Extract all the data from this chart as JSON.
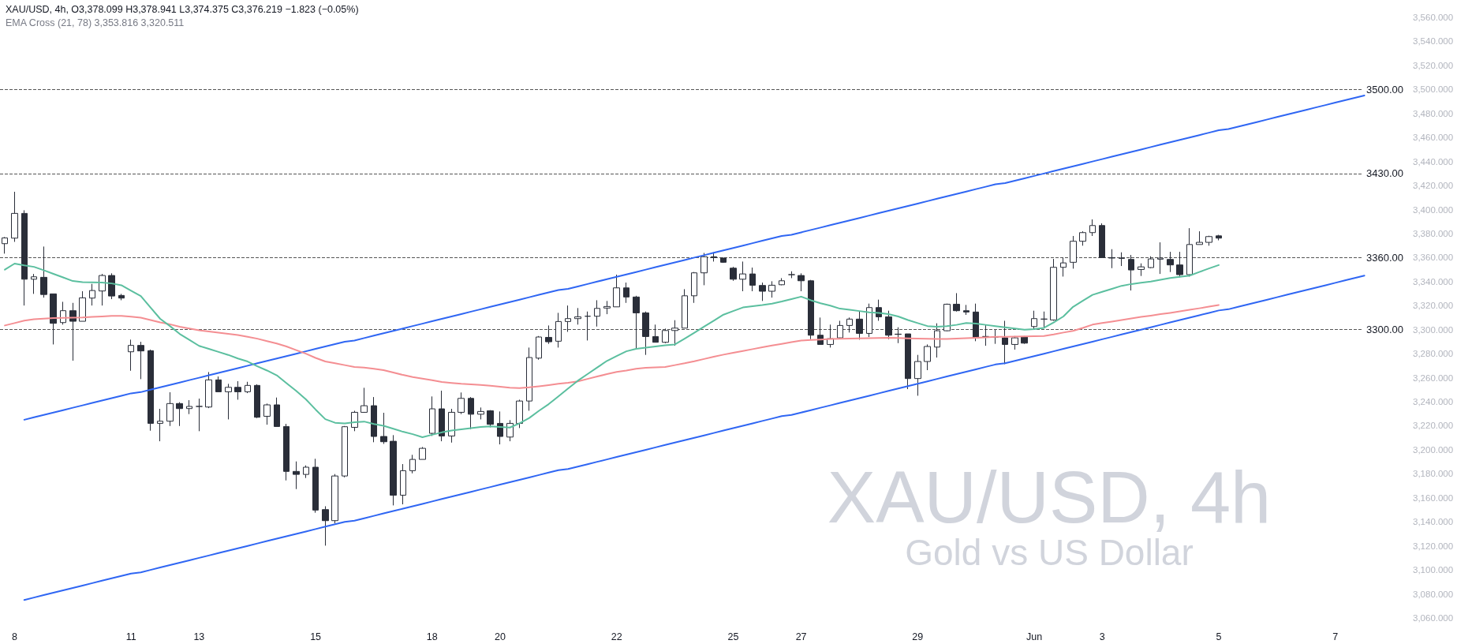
{
  "chart_data": {
    "type": "candlestick",
    "title": "XAU/USD, 4h, O3,378.099 H3,378.941 L3,374.375 C3,376.219 −1.823 (−0.05%)",
    "subtitle": "EMA Cross (21, 78) 3,353.816 3,320.511",
    "annotations": [
      "XAU/USD, 4h",
      "Gold vs US Dollar"
    ],
    "categories": [
      null,
      "8",
      null,
      null,
      null,
      null,
      null,
      null,
      null,
      null,
      null,
      null,
      null,
      "11",
      null,
      null,
      null,
      null,
      null,
      null,
      "13",
      null,
      null,
      null,
      null,
      null,
      null,
      null,
      null,
      null,
      null,
      null,
      "15",
      null,
      null,
      null,
      null,
      null,
      null,
      null,
      null,
      null,
      null,
      null,
      "18",
      null,
      null,
      null,
      null,
      null,
      null,
      "20",
      null,
      null,
      null,
      null,
      null,
      null,
      null,
      null,
      null,
      null,
      null,
      "22",
      null,
      null,
      null,
      null,
      null,
      null,
      null,
      null,
      null,
      null,
      null,
      "25",
      null,
      null,
      null,
      null,
      null,
      null,
      "27",
      null,
      null,
      null,
      null,
      null,
      null,
      null,
      null,
      null,
      null,
      null,
      "29",
      null,
      null,
      null,
      null,
      null,
      null,
      null,
      null,
      null,
      null,
      null,
      "Jun",
      null,
      null,
      null,
      null,
      null,
      null,
      "3",
      null,
      null,
      null,
      null,
      null,
      null,
      null,
      null,
      null,
      null,
      null,
      "5",
      null,
      null,
      null,
      null,
      null,
      null,
      null,
      null,
      null,
      null,
      null,
      "7",
      null,
      null,
      null,
      null,
      null,
      null,
      null
    ],
    "ylim": [
      3060,
      3560
    ],
    "yticks": [
      {
        "value": 3060,
        "label": "3,060.000"
      },
      {
        "value": 3080,
        "label": "3,080.000"
      },
      {
        "value": 3100,
        "label": "3,100.000"
      },
      {
        "value": 3120,
        "label": "3,120.000"
      },
      {
        "value": 3140,
        "label": "3,140.000"
      },
      {
        "value": 3160,
        "label": "3,160.000"
      },
      {
        "value": 3180,
        "label": "3,180.000"
      },
      {
        "value": 3200,
        "label": "3,200.000"
      },
      {
        "value": 3220,
        "label": "3,220.000"
      },
      {
        "value": 3240,
        "label": "3,240.000"
      },
      {
        "value": 3260,
        "label": "3,260.000"
      },
      {
        "value": 3280,
        "label": "3,280.000"
      },
      {
        "value": 3300,
        "label": "3,300.000"
      },
      {
        "value": 3320,
        "label": "3,320.000"
      },
      {
        "value": 3340,
        "label": "3,340.000"
      },
      {
        "value": 3360,
        "label": "3,360.000"
      },
      {
        "value": 3380,
        "label": "3,380.000"
      },
      {
        "value": 3400,
        "label": "3,400.000"
      },
      {
        "value": 3420,
        "label": "3,420.000"
      },
      {
        "value": 3440,
        "label": "3,440.000"
      },
      {
        "value": 3460,
        "label": "3,460.000"
      },
      {
        "value": 3480,
        "label": "3,480.000"
      },
      {
        "value": 3500,
        "label": "3,500.000"
      },
      {
        "value": 3520,
        "label": "3,520.000"
      },
      {
        "value": 3540,
        "label": "3,540.000"
      },
      {
        "value": 3560,
        "label": "3,560.000"
      }
    ],
    "ref_lines": [
      {
        "axis": "y",
        "value": 3500,
        "label": "3500.00",
        "color": "#555555",
        "line_style": "dashed"
      },
      {
        "axis": "y",
        "value": 3430,
        "label": "3430.00",
        "color": "#555555",
        "line_style": "dashed"
      },
      {
        "axis": "y",
        "value": 3360,
        "label": "3360.00",
        "color": "#555555",
        "line_style": "dashed"
      },
      {
        "axis": "y",
        "value": 3300,
        "label": "3300.00",
        "color": "#555555",
        "line_style": "dashed"
      }
    ],
    "marker": "none",
    "series": [
      {
        "type": "line",
        "color": "#2f66f3",
        "line_style": "solid",
        "values": [
          null,
          null,
          3225,
          3227,
          3229,
          3231,
          3233,
          3235,
          3237,
          3239,
          3241,
          3243,
          3245,
          3247,
          3248,
          3250,
          3252,
          3254,
          3256,
          3258,
          3260,
          3262,
          3264,
          3266,
          3268,
          3270,
          3272,
          3274,
          3276,
          3278,
          3280,
          3282,
          3284,
          3286,
          3288,
          3290,
          3291,
          3293,
          3295,
          3297,
          3299,
          3301,
          3303,
          3305,
          3307,
          3309,
          3311,
          3313,
          3315,
          3317,
          3319,
          3321,
          3323,
          3325,
          3327,
          3329,
          3331,
          3333,
          3334,
          3336,
          3338,
          3340,
          3342,
          3344,
          3346,
          3348,
          3350,
          3352,
          3354,
          3356,
          3358,
          3360,
          3362,
          3364,
          3366,
          3368,
          3370,
          3372,
          3374,
          3376,
          3378,
          3379,
          3381,
          3383,
          3385,
          3387,
          3389,
          3391,
          3393,
          3395,
          3397,
          3399,
          3401,
          3403,
          3405,
          3407,
          3409,
          3411,
          3413,
          3415,
          3417,
          3419,
          3421,
          3422,
          3424,
          3426,
          3428,
          3430,
          3432,
          3434,
          3436,
          3438,
          3440,
          3442,
          3444,
          3446,
          3448,
          3450,
          3452,
          3454,
          3456,
          3458,
          3460,
          3462,
          3464,
          3466,
          3467,
          3469,
          3471,
          3473,
          3475,
          3477,
          3479,
          3481,
          3483,
          3485,
          3487,
          3489,
          3491,
          3493,
          3495,
          null,
          null,
          null,
          null
        ]
      },
      {
        "type": "line",
        "color": "#2f66f3",
        "line_style": "solid",
        "values": [
          null,
          null,
          3075,
          3077,
          3079,
          3081,
          3083,
          3085,
          3087,
          3089,
          3091,
          3093,
          3095,
          3097,
          3098,
          3100,
          3102,
          3104,
          3106,
          3108,
          3110,
          3112,
          3114,
          3116,
          3118,
          3120,
          3122,
          3124,
          3126,
          3128,
          3130,
          3132,
          3134,
          3136,
          3138,
          3140,
          3141,
          3143,
          3145,
          3147,
          3149,
          3151,
          3153,
          3155,
          3157,
          3159,
          3161,
          3163,
          3165,
          3167,
          3169,
          3171,
          3173,
          3175,
          3177,
          3179,
          3181,
          3183,
          3184,
          3186,
          3188,
          3190,
          3192,
          3194,
          3196,
          3198,
          3200,
          3202,
          3204,
          3206,
          3208,
          3210,
          3212,
          3214,
          3216,
          3218,
          3220,
          3222,
          3224,
          3226,
          3228,
          3229,
          3231,
          3233,
          3235,
          3237,
          3239,
          3241,
          3243,
          3245,
          3247,
          3249,
          3251,
          3253,
          3255,
          3257,
          3259,
          3261,
          3263,
          3265,
          3267,
          3269,
          3271,
          3272,
          3274,
          3276,
          3278,
          3280,
          3282,
          3284,
          3286,
          3288,
          3290,
          3292,
          3294,
          3296,
          3298,
          3300,
          3302,
          3304,
          3306,
          3308,
          3310,
          3312,
          3314,
          3316,
          3317,
          3319,
          3321,
          3323,
          3325,
          3327,
          3329,
          3331,
          3333,
          3335,
          3337,
          3339,
          3341,
          3343,
          3345,
          null,
          null,
          null,
          null
        ]
      },
      {
        "type": "line",
        "color": "#f48e92",
        "line_style": "solid",
        "values": [
          3303.5,
          3305.5,
          3307.5,
          3308.7,
          3309.2,
          3309.6,
          3309.8,
          3310,
          3310.2,
          3310.6,
          3311,
          3311.5,
          3311.5,
          3310.8,
          3310,
          3308,
          3306,
          3304.5,
          3302.5,
          3301,
          3299.5,
          3298.5,
          3297.5,
          3296.5,
          3295.5,
          3294,
          3292.5,
          3290.5,
          3288.5,
          3286,
          3283,
          3280,
          3276.5,
          3273.5,
          3272,
          3270.5,
          3269,
          3268.5,
          3267.5,
          3266.3,
          3264.3,
          3262.3,
          3260.5,
          3259.3,
          3258,
          3256.5,
          3255.7,
          3255,
          3254.5,
          3254,
          3253.3,
          3252.5,
          3251.7,
          3251.4,
          3252,
          3252.9,
          3253.9,
          3254.9,
          3255.8,
          3257,
          3259,
          3261,
          3263,
          3264.8,
          3266,
          3267.4,
          3268.2,
          3268.6,
          3269,
          3270.5,
          3272,
          3273.7,
          3275.6,
          3277.5,
          3279.2,
          3280.8,
          3282.3,
          3283.8,
          3285.3,
          3286.8,
          3288.2,
          3289.7,
          3291,
          3291.5,
          3291.8,
          3292.2,
          3292.5,
          3292.6,
          3292.8,
          3292.9,
          3293,
          3293.2,
          3293,
          3292.8,
          3292.6,
          3292.4,
          3292.2,
          3292.3,
          3292.6,
          3292.9,
          3293.3,
          3293.6,
          3294,
          3294.1,
          3294.3,
          3294.4,
          3294.5,
          3294.7,
          3296,
          3297.6,
          3299,
          3301.5,
          3304.2,
          3305.5,
          3306.7,
          3308,
          3309.3,
          3310.6,
          3311.7,
          3312.9,
          3314,
          3315.2,
          3316.5,
          3317.8,
          3319.2,
          3320.5,
          null,
          null,
          null,
          null,
          null,
          null,
          null,
          null,
          null,
          null,
          null,
          null,
          null,
          null,
          null,
          null,
          null,
          null,
          null
        ]
      },
      {
        "type": "line",
        "color": "#5bbf9f",
        "line_style": "solid",
        "values": [
          3350,
          3355,
          3353.5,
          3352.3,
          3349.5,
          3346.5,
          3343.5,
          3340.5,
          3339.5,
          3339.4,
          3339.3,
          3338.5,
          3337,
          3332.5,
          3328,
          3318.5,
          3309,
          3303,
          3296.5,
          3291.5,
          3286.5,
          3284,
          3281.5,
          3279,
          3276,
          3273.5,
          3269.5,
          3266,
          3262,
          3255.5,
          3249,
          3242,
          3233.5,
          3225.5,
          3222.5,
          3222,
          3223,
          3223.5,
          3221.5,
          3220,
          3217.5,
          3215,
          3213,
          3210.5,
          3212.5,
          3214.5,
          3216,
          3217,
          3218,
          3219,
          3219.5,
          3219,
          3218.5,
          3222,
          3226.5,
          3232.5,
          3238,
          3244.5,
          3251,
          3257.5,
          3263,
          3268.5,
          3274,
          3278,
          3282,
          3284,
          3285,
          3286,
          3287,
          3287.7,
          3292.5,
          3297.5,
          3302.5,
          3307.5,
          3312.5,
          3315.5,
          3318.5,
          3319.5,
          3320.5,
          3321.7,
          3323.5,
          3325.5,
          3327.5,
          3324.5,
          3322,
          3320,
          3317.5,
          3316.5,
          3315.5,
          3314.5,
          3314,
          3313,
          3311,
          3308,
          3305.5,
          3303,
          3302.5,
          3303,
          3304,
          3305.5,
          3305,
          3304,
          3303,
          3302,
          3301,
          3300,
          3300.5,
          3301.5,
          3306,
          3311,
          3319,
          3324,
          3329,
          3331.5,
          3334,
          3336.5,
          3338,
          3339,
          3340,
          3341.5,
          3343,
          3344,
          3345,
          3348,
          3351,
          3353.8,
          null,
          null,
          null,
          null,
          null,
          null,
          null,
          null,
          null,
          null,
          null,
          null,
          null,
          null,
          null,
          null,
          null,
          null,
          null
        ]
      },
      {
        "color": "#2a2e39",
        "ohlc": [
          [
            3371.6,
            3377.1,
            3363.3,
            3376.4
          ],
          [
            3376.2,
            3414.8,
            3373.1,
            3396.8
          ],
          [
            3396.8,
            3399.4,
            3320.1,
            3342.0
          ],
          [
            3342.0,
            3346.4,
            3329.8,
            3344.0
          ],
          [
            3343.6,
            3369.2,
            3326.7,
            3329.3
          ],
          [
            3329.8,
            3329.8,
            3287.7,
            3305.3
          ],
          [
            3305.9,
            3323.2,
            3304.2,
            3315.8
          ],
          [
            3315.8,
            3322.3,
            3274.2,
            3307.0
          ],
          [
            3307.0,
            3332.0,
            3307.0,
            3326.5
          ],
          [
            3326.3,
            3338.1,
            3320.1,
            3332.6
          ],
          [
            3332.2,
            3346.4,
            3320.1,
            3345.1
          ],
          [
            3345.1,
            3346.9,
            3325.4,
            3328.0
          ],
          [
            3328.5,
            3329.8,
            3324.5,
            3326.3
          ],
          [
            3281.6,
            3291.7,
            3265.8,
            3286.9
          ],
          [
            3286.9,
            3289.9,
            3258.8,
            3282.3
          ],
          [
            3282.5,
            3283.4,
            3215.9,
            3222.0
          ],
          [
            3222.0,
            3234.1,
            3207.1,
            3223.8
          ],
          [
            3223.8,
            3247.9,
            3219.8,
            3238.5
          ],
          [
            3238.5,
            3239.6,
            3219.8,
            3234.3
          ],
          [
            3234.3,
            3241.3,
            3229.7,
            3236.1
          ],
          [
            3236.1,
            3242.6,
            3215.5,
            3236.1
          ],
          [
            3235.6,
            3264.7,
            3234.7,
            3258.2
          ],
          [
            3258.2,
            3261.0,
            3248.3,
            3248.3
          ],
          [
            3248.3,
            3254.9,
            3225.3,
            3252.0
          ],
          [
            3252.0,
            3257.1,
            3241.7,
            3248.3
          ],
          [
            3248.3,
            3256.6,
            3247.2,
            3253.6
          ],
          [
            3253.6,
            3254.5,
            3226.4,
            3227.1
          ],
          [
            3227.9,
            3238.5,
            3220.9,
            3237.4
          ],
          [
            3237.4,
            3243.5,
            3219.4,
            3219.4
          ],
          [
            3219.4,
            3221.6,
            3174.5,
            3182.0
          ],
          [
            3182.0,
            3190.3,
            3167.3,
            3179.5
          ],
          [
            3179.5,
            3187.0,
            3176.5,
            3185.5
          ],
          [
            3185.5,
            3192.5,
            3147.6,
            3149.8
          ],
          [
            3150.2,
            3153.0,
            3120.2,
            3141.0
          ],
          [
            3141.0,
            3179.8,
            3138.8,
            3178.2
          ],
          [
            3178.2,
            3219.8,
            3177.1,
            3219.2
          ],
          [
            3218.7,
            3232.5,
            3215.5,
            3231.2
          ],
          [
            3231.2,
            3251.6,
            3230.8,
            3236.7
          ],
          [
            3236.7,
            3243.9,
            3206.3,
            3211.1
          ],
          [
            3211.1,
            3230.8,
            3204.9,
            3206.7
          ],
          [
            3207.1,
            3212.2,
            3153.7,
            3162.2
          ],
          [
            3162.2,
            3188.1,
            3154.6,
            3182.6
          ],
          [
            3182.6,
            3195.8,
            3180.4,
            3192.0
          ],
          [
            3192.0,
            3202.3,
            3192.0,
            3201.2
          ],
          [
            3213.7,
            3244.4,
            3211.5,
            3234.1
          ],
          [
            3234.1,
            3249.2,
            3207.1,
            3211.5
          ],
          [
            3211.5,
            3234.1,
            3206.0,
            3231.2
          ],
          [
            3231.2,
            3247.7,
            3229.7,
            3242.8
          ],
          [
            3242.8,
            3243.9,
            3217.2,
            3229.6
          ],
          [
            3229.6,
            3235.2,
            3225.3,
            3231.9
          ],
          [
            3232.5,
            3233.0,
            3218.7,
            3221.2
          ],
          [
            3222.0,
            3231.9,
            3204.5,
            3211.1
          ],
          [
            3210.6,
            3224.7,
            3207.1,
            3222.0
          ],
          [
            3222.0,
            3241.7,
            3218.1,
            3240.6
          ],
          [
            3240.6,
            3285.1,
            3232.5,
            3276.8
          ],
          [
            3276.3,
            3294.7,
            3275.0,
            3293.9
          ],
          [
            3293.6,
            3303.5,
            3288.2,
            3289.9
          ],
          [
            3290.4,
            3314.0,
            3285.1,
            3306.8
          ],
          [
            3306.8,
            3320.1,
            3298.2,
            3309.2
          ],
          [
            3309.2,
            3318.0,
            3304.2,
            3310.7
          ],
          [
            3311.2,
            3315.1,
            3291.0,
            3311.2
          ],
          [
            3311.2,
            3324.5,
            3302.6,
            3317.7
          ],
          [
            3318.0,
            3323.9,
            3312.9,
            3319.3
          ],
          [
            3319.0,
            3345.8,
            3319.0,
            3334.8
          ],
          [
            3334.8,
            3339.2,
            3322.3,
            3327.2
          ],
          [
            3327.2,
            3328.2,
            3283.4,
            3314.0
          ],
          [
            3314.0,
            3315.1,
            3279.0,
            3294.3
          ],
          [
            3294.3,
            3304.2,
            3289.5,
            3289.5
          ],
          [
            3289.5,
            3300.9,
            3288.8,
            3299.3
          ],
          [
            3299.3,
            3307.9,
            3286.6,
            3301.3
          ],
          [
            3301.3,
            3333.7,
            3301.3,
            3328.2
          ],
          [
            3328.2,
            3348.0,
            3322.3,
            3347.3
          ],
          [
            3347.3,
            3363.9,
            3337.0,
            3360.7
          ],
          [
            3360.7,
            3364.4,
            3356.7,
            3360.0
          ],
          [
            3359.6,
            3360.0,
            3355.6,
            3356.1
          ],
          [
            3351.2,
            3352.3,
            3340.7,
            3342.0
          ],
          [
            3342.0,
            3356.7,
            3332.0,
            3346.4
          ],
          [
            3346.4,
            3351.7,
            3332.0,
            3337.0
          ],
          [
            3336.8,
            3339.2,
            3323.9,
            3332.0
          ],
          [
            3332.0,
            3340.3,
            3326.7,
            3337.0
          ],
          [
            3337.4,
            3342.9,
            3337.0,
            3340.7
          ],
          [
            3345.8,
            3348.6,
            3342.9,
            3345.8
          ],
          [
            3345.1,
            3346.9,
            3332.0,
            3340.7
          ],
          [
            3340.7,
            3341.4,
            3292.1,
            3295.4
          ],
          [
            3295.4,
            3310.1,
            3287.7,
            3287.7
          ],
          [
            3287.7,
            3304.2,
            3285.1,
            3292.5
          ],
          [
            3293.2,
            3307.4,
            3292.5,
            3303.5
          ],
          [
            3303.5,
            3310.1,
            3297.6,
            3308.8
          ],
          [
            3308.8,
            3315.1,
            3291.7,
            3296.9
          ],
          [
            3296.9,
            3321.7,
            3293.9,
            3318.4
          ],
          [
            3318.4,
            3325.0,
            3307.4,
            3310.7
          ],
          [
            3310.7,
            3315.8,
            3292.1,
            3295.4
          ],
          [
            3296.3,
            3302.0,
            3288.8,
            3296.1
          ],
          [
            3296.5,
            3296.5,
            3250.5,
            3259.3
          ],
          [
            3259.3,
            3279.0,
            3245.0,
            3273.5
          ],
          [
            3273.5,
            3287.7,
            3266.3,
            3286.0
          ],
          [
            3285.5,
            3305.3,
            3276.8,
            3299.1
          ],
          [
            3299.1,
            3321.7,
            3298.7,
            3321.2
          ],
          [
            3321.2,
            3330.4,
            3315.1,
            3315.8
          ],
          [
            3315.8,
            3320.6,
            3312.3,
            3314.7
          ],
          [
            3314.7,
            3321.7,
            3290.4,
            3293.2
          ],
          [
            3294.3,
            3304.2,
            3286.6,
            3294.3
          ],
          [
            3293.9,
            3299.8,
            3288.2,
            3293.9
          ],
          [
            3293.2,
            3307.4,
            3271.3,
            3287.7
          ],
          [
            3287.7,
            3294.7,
            3283.4,
            3293.2
          ],
          [
            3293.9,
            3294.7,
            3288.2,
            3288.8
          ],
          [
            3302.6,
            3315.8,
            3299.8,
            3309.2
          ],
          [
            3308.8,
            3315.1,
            3301.3,
            3308.8
          ],
          [
            3308.1,
            3358.9,
            3307.4,
            3351.9
          ],
          [
            3351.9,
            3360.0,
            3344.2,
            3355.6
          ],
          [
            3356.1,
            3378.0,
            3350.8,
            3373.6
          ],
          [
            3373.6,
            3381.9,
            3369.9,
            3380.8
          ],
          [
            3380.8,
            3391.8,
            3378.0,
            3386.7
          ],
          [
            3386.7,
            3388.5,
            3359.6,
            3360.0
          ],
          [
            3360.0,
            3367.0,
            3351.2,
            3359.6
          ],
          [
            3359.6,
            3364.4,
            3353.0,
            3359.4
          ],
          [
            3358.5,
            3362.2,
            3332.6,
            3349.7
          ],
          [
            3350.1,
            3355.2,
            3344.7,
            3352.3
          ],
          [
            3351.7,
            3361.1,
            3351.2,
            3358.9
          ],
          [
            3358.7,
            3372.7,
            3346.4,
            3359.6
          ],
          [
            3358.5,
            3364.8,
            3348.0,
            3353.9
          ],
          [
            3353.9,
            3364.8,
            3343.6,
            3345.8
          ],
          [
            3345.8,
            3384.5,
            3344.2,
            3370.9
          ],
          [
            3370.9,
            3381.9,
            3370.9,
            3372.7
          ],
          [
            3372.7,
            3378.2,
            3369.9,
            3377.5
          ],
          [
            3378.099,
            3378.941,
            3374.375,
            3376.219
          ],
          null,
          null,
          null,
          null,
          null,
          null,
          null,
          null,
          null,
          null,
          null,
          null,
          null,
          null,
          null,
          null,
          null,
          null,
          null
        ]
      }
    ]
  }
}
